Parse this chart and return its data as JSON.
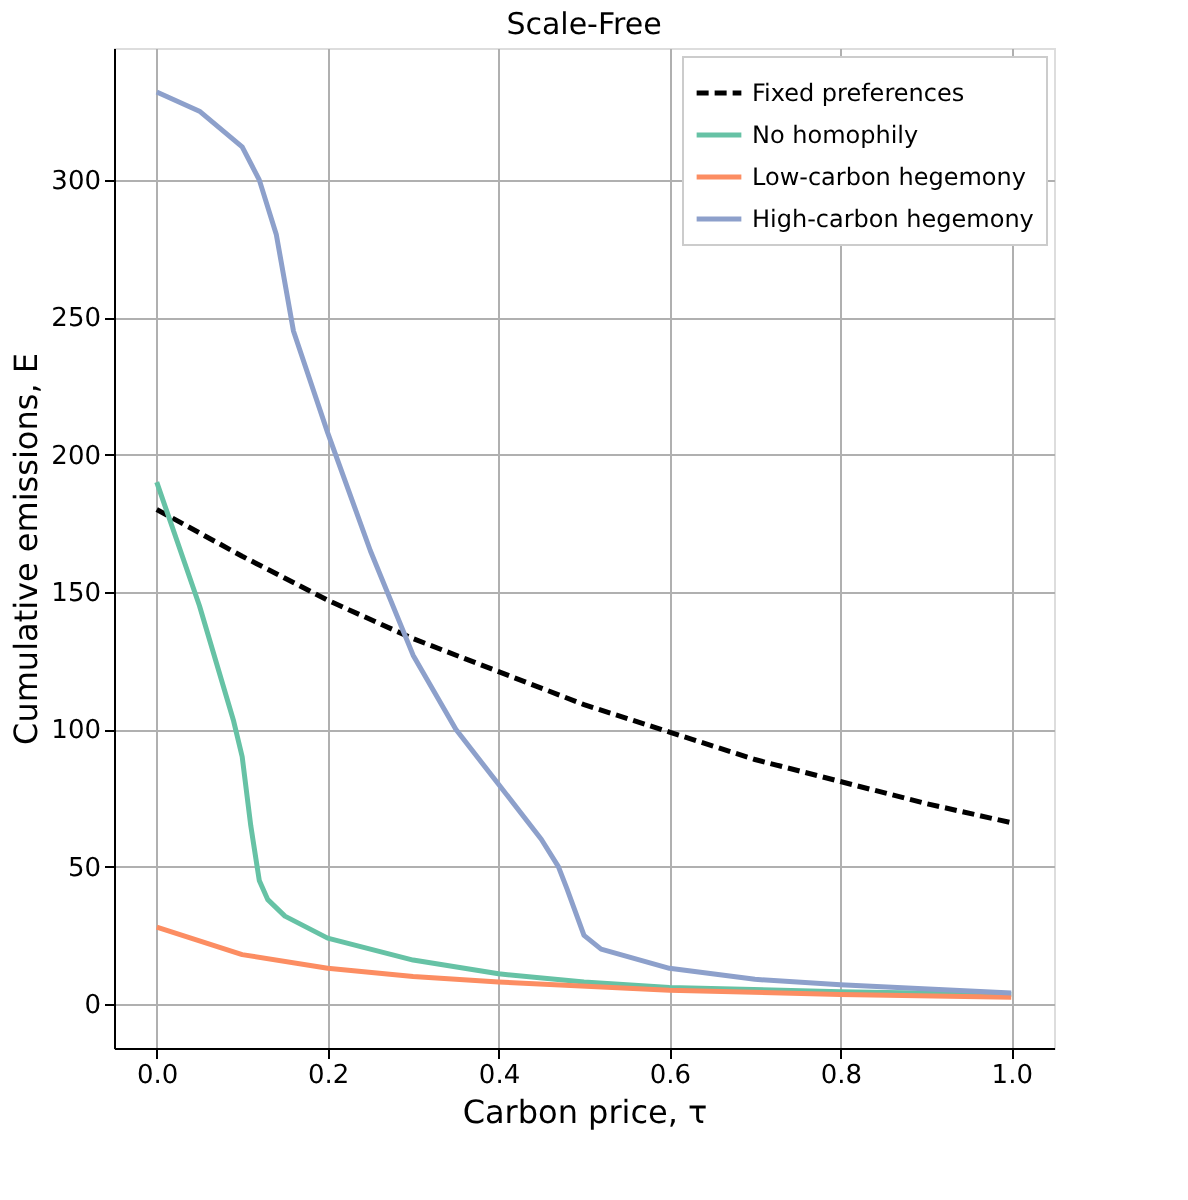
{
  "chart_data": {
    "type": "line",
    "title": "Scale-Free",
    "xlabel": "Carbon price, τ",
    "ylabel": "Cumulative emissions, E",
    "xlim": [
      -0.05,
      1.05
    ],
    "xticks": [
      {
        "value": 0,
        "label": "0.0"
      },
      {
        "value": 0.2,
        "label": "0.2"
      },
      {
        "value": 0.4,
        "label": "0.4"
      },
      {
        "value": 0.6,
        "label": "0.6"
      },
      {
        "value": 0.8,
        "label": "0.8"
      },
      {
        "value": 1,
        "label": "1.0"
      }
    ],
    "ylim": [
      -16,
      348
    ],
    "yticks": [
      0,
      50,
      100,
      150,
      200,
      250,
      300
    ],
    "grid": true,
    "legend": "top right",
    "series": [
      {
        "name": "Fixed preferences",
        "color": "#000000",
        "line_style": "dashed",
        "x": [
          0,
          0.1,
          0.2,
          0.3,
          0.4,
          0.5,
          0.6,
          0.7,
          0.8,
          0.9,
          1.0
        ],
        "values": [
          180,
          163,
          147,
          133,
          121,
          109,
          99,
          89,
          81,
          73,
          66
        ]
      },
      {
        "name": "No homophily",
        "color": "#66c2a5",
        "line_style": "solid",
        "x": [
          0,
          0.05,
          0.09,
          0.1,
          0.11,
          0.12,
          0.13,
          0.15,
          0.2,
          0.3,
          0.4,
          0.5,
          0.6,
          0.8,
          1.0
        ],
        "values": [
          190,
          145,
          103,
          90,
          65,
          45,
          38,
          32,
          24,
          16,
          11,
          8,
          6,
          4.5,
          3.5
        ]
      },
      {
        "name": "Low-carbon hegemony",
        "color": "#fc8d62",
        "line_style": "solid",
        "x": [
          0,
          0.1,
          0.2,
          0.3,
          0.4,
          0.6,
          0.8,
          1.0
        ],
        "values": [
          28,
          18,
          13,
          10,
          8,
          5,
          3.5,
          2.5
        ]
      },
      {
        "name": "High-carbon hegemony",
        "color": "#8da0cb",
        "line_style": "solid",
        "x": [
          0,
          0.05,
          0.1,
          0.12,
          0.14,
          0.16,
          0.2,
          0.25,
          0.3,
          0.35,
          0.4,
          0.45,
          0.47,
          0.48,
          0.5,
          0.52,
          0.6,
          0.7,
          0.8,
          1.0
        ],
        "values": [
          332,
          325,
          312,
          300,
          280,
          245,
          208,
          165,
          127,
          100,
          80,
          60,
          50,
          42,
          25,
          20,
          13,
          9,
          7,
          4
        ]
      }
    ]
  }
}
